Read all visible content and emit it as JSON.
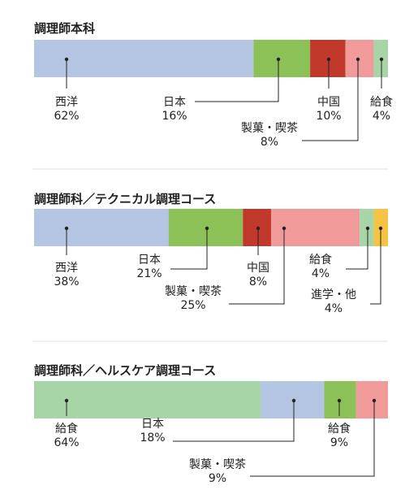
{
  "chart_data": [
    {
      "type": "bar",
      "title": "調理師本科",
      "series": [
        {
          "name": "西洋",
          "value": 62,
          "label": "62%",
          "color": "#b3c5e3"
        },
        {
          "name": "日本",
          "value": 16,
          "label": "16%",
          "color": "#8cc158"
        },
        {
          "name": "中国",
          "value": 10,
          "label": "10%",
          "color": "#c0392b"
        },
        {
          "name": "製菓・喫茶",
          "value": 8,
          "label": "8%",
          "color": "#f19a9a"
        },
        {
          "name": "給食",
          "value": 4,
          "label": "4%",
          "color": "#a8d5a8"
        }
      ]
    },
    {
      "type": "bar",
      "title": "調理師科／テクニカル調理コース",
      "series": [
        {
          "name": "西洋",
          "value": 38,
          "label": "38%",
          "color": "#b3c5e3"
        },
        {
          "name": "日本",
          "value": 21,
          "label": "21%",
          "color": "#8cc158"
        },
        {
          "name": "中国",
          "value": 8,
          "label": "8%",
          "color": "#c0392b"
        },
        {
          "name": "製菓・喫茶",
          "value": 25,
          "label": "25%",
          "color": "#f19a9a"
        },
        {
          "name": "給食",
          "value": 4,
          "label": "4%",
          "color": "#a8d5a8"
        },
        {
          "name": "進学・他",
          "value": 4,
          "label": "4%",
          "color": "#f5c242"
        }
      ]
    },
    {
      "type": "bar",
      "title": "調理師科／ヘルスケア調理コース",
      "series": [
        {
          "name": "給食",
          "value": 64,
          "label": "64%",
          "color": "#a8d5a8"
        },
        {
          "name": "日本",
          "value": 18,
          "label": "18%",
          "color": "#b3c5e3"
        },
        {
          "name": "給食",
          "value": 9,
          "label": "9%",
          "color": "#8cc158"
        },
        {
          "name": "製菓・喫茶",
          "value": 9,
          "label": "9%",
          "color": "#f19a9a"
        }
      ]
    }
  ]
}
